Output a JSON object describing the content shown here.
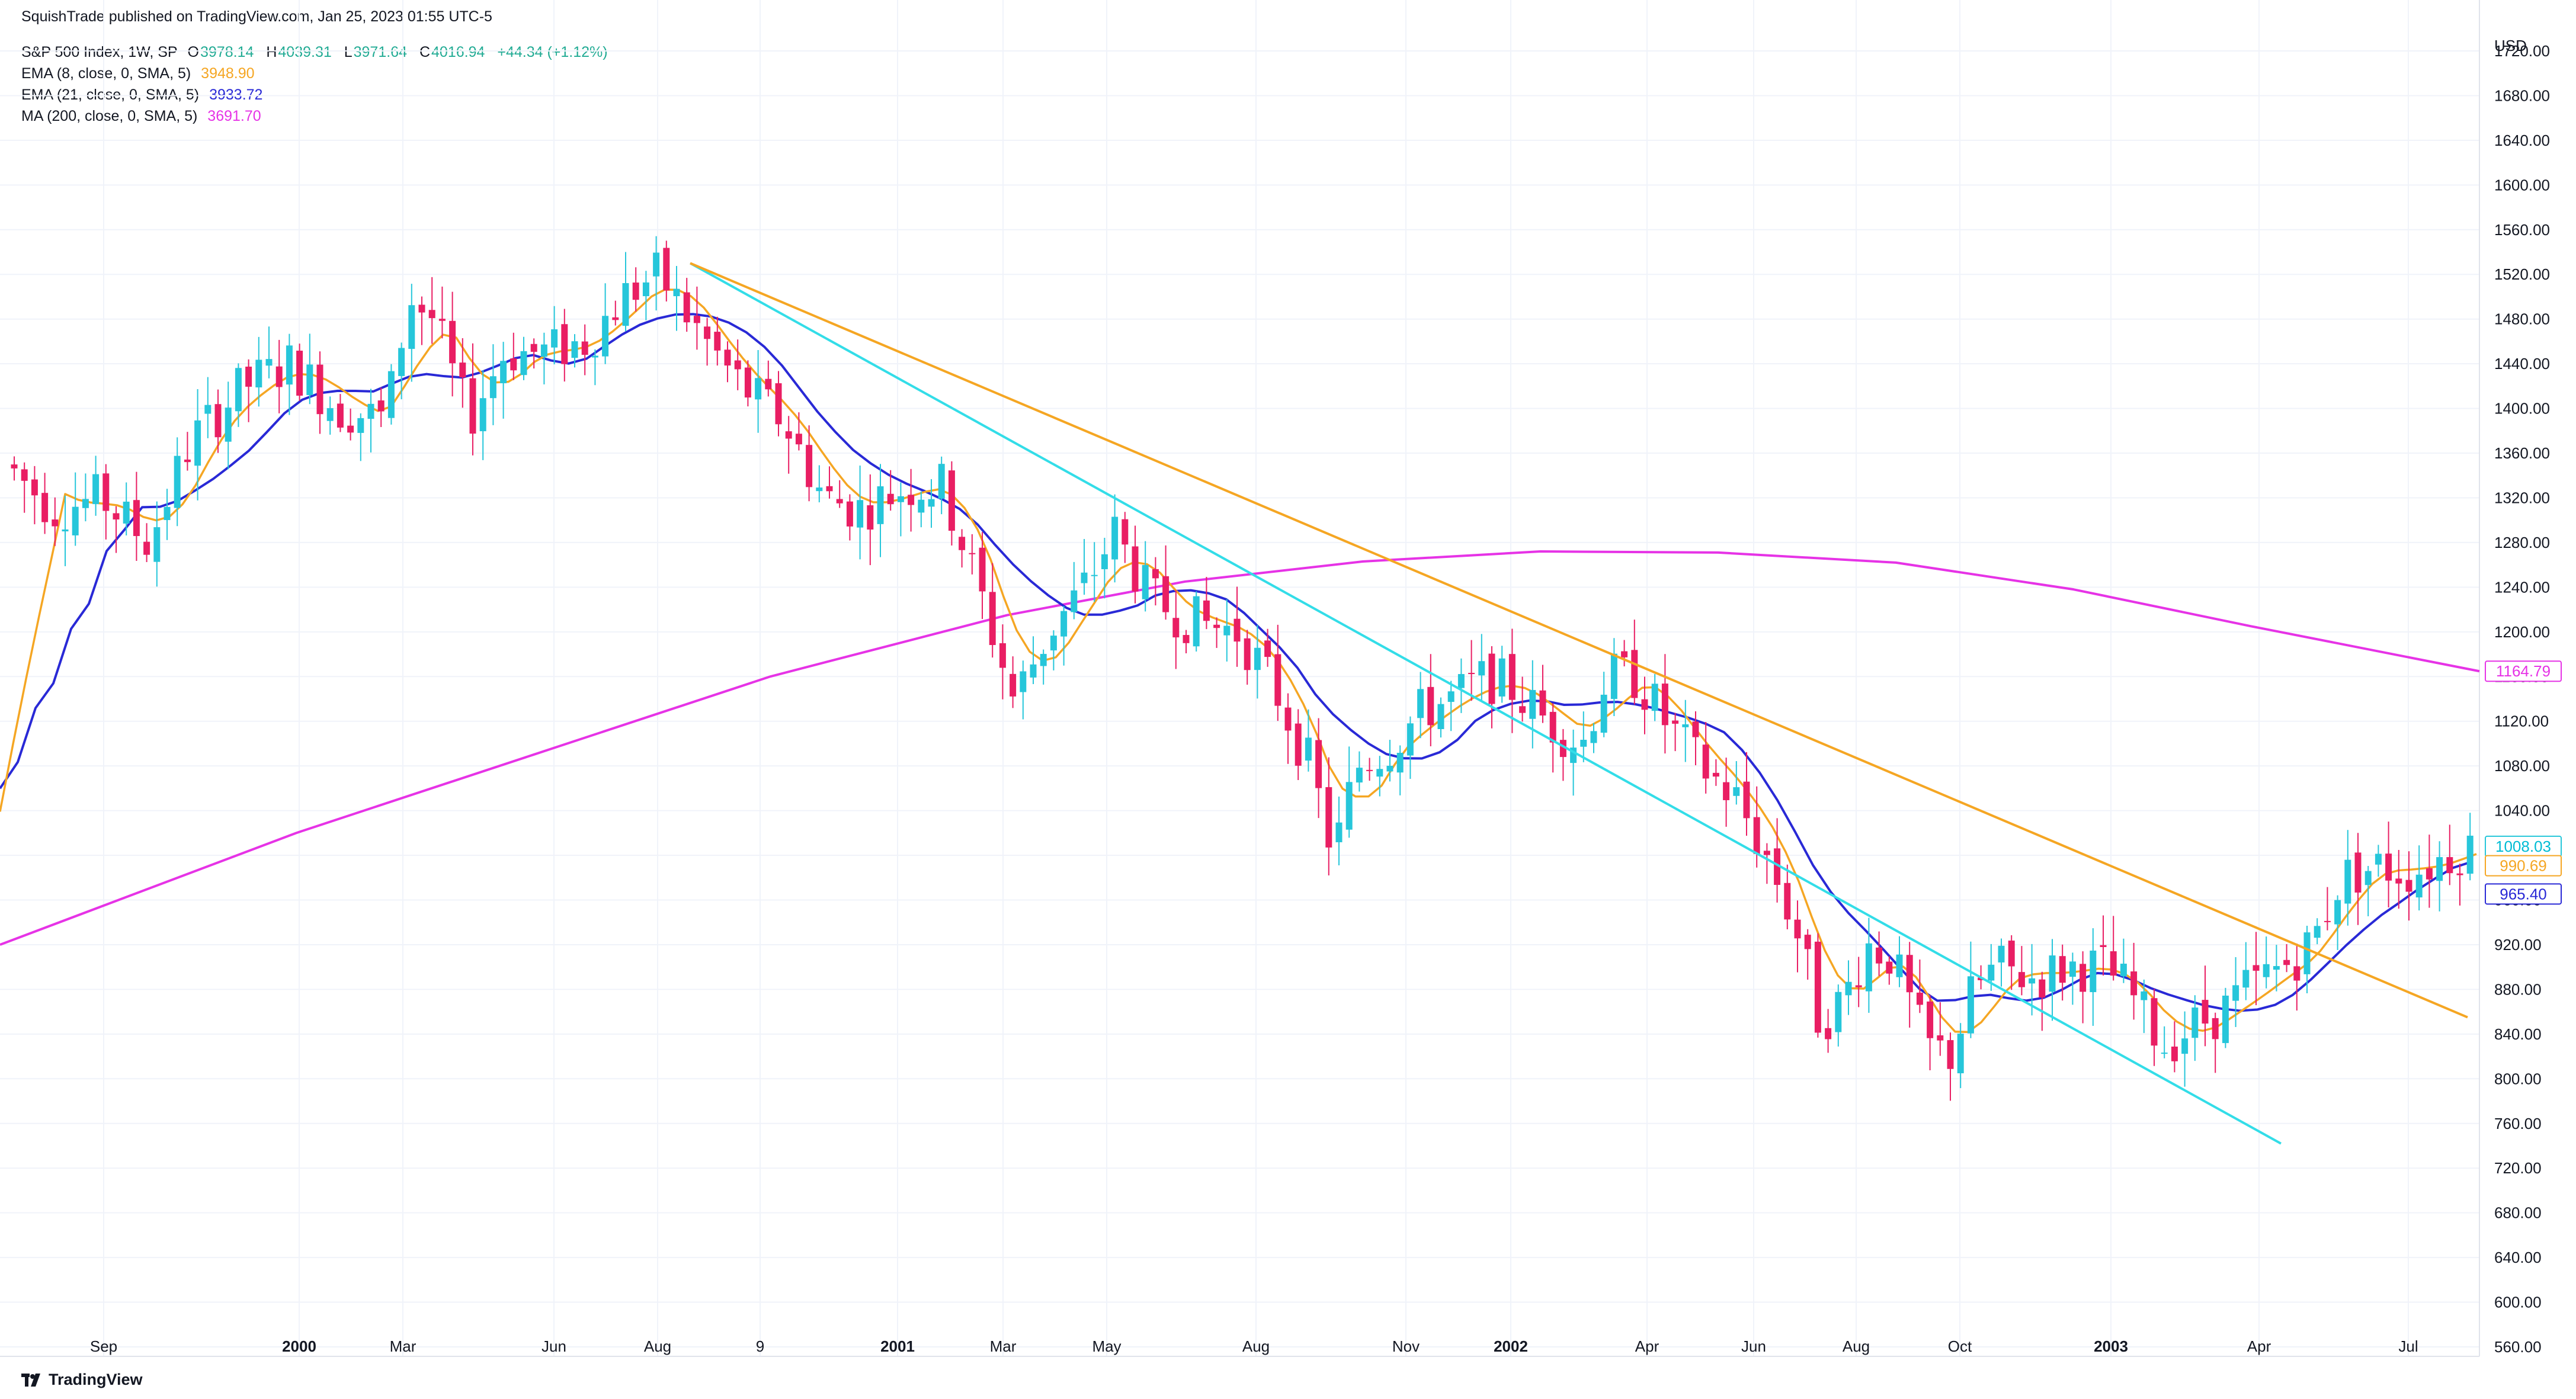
{
  "header": {
    "published": "SquishTrade published on TradingView.com, Jan 25, 2023 01:55 UTC-5"
  },
  "legend": {
    "symbol": "S&P 500 Index, 1W, SP",
    "ohlc": [
      {
        "k": "O",
        "v": "3978.14"
      },
      {
        "k": "H",
        "v": "4039.31"
      },
      {
        "k": "L",
        "v": "3971.64"
      },
      {
        "k": "C",
        "v": "4016.94"
      }
    ],
    "change": "+44.34 (+1.12%)",
    "indicators": [
      {
        "label": "EMA (8, close, 0, SMA, 5)",
        "value": "3948.90",
        "color": "#f5a623"
      },
      {
        "label": "EMA (21, close, 0, SMA, 5)",
        "value": "3933.72",
        "color": "#2929d6"
      },
      {
        "label": "MA (200, close, 0, SMA, 5)",
        "value": "3691.70",
        "color": "#e633e6"
      }
    ]
  },
  "colors": {
    "up": "#26c6da",
    "down": "#e91e63",
    "ema8": "#f5a623",
    "ema21": "#2929d6",
    "ma200": "#e633e6",
    "trend_cyan": "#33dde8",
    "trend_orange": "#f5a623",
    "axis_text": "#131722",
    "grid": "#f0f3fa"
  },
  "price_axis": {
    "currency": "USD",
    "ticks": [
      "1720.00",
      "1680.00",
      "1640.00",
      "1600.00",
      "1560.00",
      "1520.00",
      "1480.00",
      "1440.00",
      "1400.00",
      "1360.00",
      "1320.00",
      "1280.00",
      "1240.00",
      "1200.00",
      "1160.00",
      "1120.00",
      "1080.00",
      "1040.00",
      "1000.00",
      "960.00",
      "920.00",
      "880.00",
      "840.00",
      "800.00",
      "760.00",
      "720.00",
      "680.00",
      "640.00",
      "600.00",
      "560.00"
    ],
    "badges": [
      {
        "label": "1164.79",
        "kind": "ma200"
      },
      {
        "label": "1008.03",
        "kind": "price"
      },
      {
        "label": "990.69",
        "kind": "ema8"
      },
      {
        "label": "965.40",
        "kind": "ema21"
      }
    ]
  },
  "time_axis": {
    "labels": [
      {
        "text": "Sep",
        "bold": false
      },
      {
        "text": "2000",
        "bold": true
      },
      {
        "text": "Mar",
        "bold": false
      },
      {
        "text": "Jun",
        "bold": false
      },
      {
        "text": "Aug",
        "bold": false
      },
      {
        "text": "9",
        "bold": false
      },
      {
        "text": "2001",
        "bold": true
      },
      {
        "text": "Mar",
        "bold": false
      },
      {
        "text": "May",
        "bold": false
      },
      {
        "text": "Aug",
        "bold": false
      },
      {
        "text": "Nov",
        "bold": false
      },
      {
        "text": "2002",
        "bold": true
      },
      {
        "text": "Apr",
        "bold": false
      },
      {
        "text": "Jun",
        "bold": false
      },
      {
        "text": "Aug",
        "bold": false
      },
      {
        "text": "Oct",
        "bold": false
      },
      {
        "text": "2003",
        "bold": true
      },
      {
        "text": "Apr",
        "bold": false
      },
      {
        "text": "Jul",
        "bold": false
      }
    ]
  },
  "footer": {
    "brand": "TradingView"
  },
  "chart_data": {
    "type": "candlestick",
    "symbol": "S&P 500 Index",
    "interval": "1W",
    "y_unit": "USD",
    "ylim": [
      540,
      1760
    ],
    "series": [
      {
        "name": "EMA (8, close, 0, SMA, 5)",
        "type": "line",
        "x": [
          "1999-09",
          "2000-01",
          "2000-03",
          "2000-06",
          "2000-08",
          "2000-10",
          "2001-01",
          "2001-03",
          "2001-05",
          "2001-08",
          "2001-11",
          "2002-01",
          "2002-04",
          "2002-06",
          "2002-08",
          "2002-10",
          "2003-01",
          "2003-04",
          "2003-07",
          "2003-08"
        ],
        "values": [
          1320,
          1420,
          1400,
          1450,
          1500,
          1380,
          1300,
          1230,
          1250,
          1200,
          1110,
          1130,
          1110,
          1000,
          880,
          860,
          900,
          880,
          980,
          990.69
        ]
      },
      {
        "name": "EMA (21, close, 0, SMA, 5)",
        "type": "line",
        "x": [
          "1999-09",
          "2000-01",
          "2000-03",
          "2000-06",
          "2000-08",
          "2000-10",
          "2001-01",
          "2001-03",
          "2001-05",
          "2001-08",
          "2001-11",
          "2002-01",
          "2002-04",
          "2002-06",
          "2002-08",
          "2002-10",
          "2003-01",
          "2003-04",
          "2003-07",
          "2003-08"
        ],
        "values": [
          1330,
          1390,
          1400,
          1430,
          1470,
          1420,
          1350,
          1280,
          1250,
          1220,
          1130,
          1120,
          1120,
          1060,
          920,
          900,
          920,
          870,
          950,
          965.4
        ]
      },
      {
        "name": "MA (200, close, 0, SMA, 5)",
        "type": "line",
        "x": [
          "1999-09",
          "2000-01",
          "2000-06",
          "2000-10",
          "2001-01",
          "2001-05",
          "2001-09",
          "2002-01",
          "2002-06",
          "2003-01",
          "2003-08"
        ],
        "values": [
          920,
          990,
          1080,
          1150,
          1200,
          1240,
          1265,
          1272,
          1268,
          1230,
          1164.79
        ]
      }
    ],
    "annotations": [
      {
        "type": "trendline",
        "color": "cyan",
        "from": {
          "date": "2000-09",
          "price": 1530
        },
        "to": {
          "date": "2003-03",
          "price": 742
        }
      },
      {
        "type": "trendline",
        "color": "orange",
        "from": {
          "date": "2000-09",
          "price": 1530
        },
        "to": {
          "date": "2003-08",
          "price": 855
        }
      }
    ],
    "last_price": 1008.03
  }
}
